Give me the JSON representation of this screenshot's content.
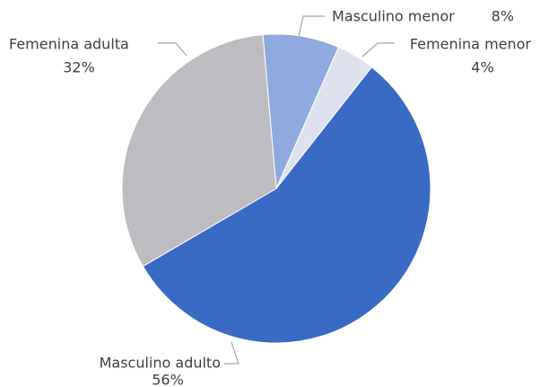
{
  "chart_data": {
    "type": "pie",
    "categories": [
      "Masculino menor",
      "Femenina menor",
      "Masculino adulto",
      "Femenina adulta"
    ],
    "values": [
      8,
      4,
      56,
      32
    ],
    "value_labels": [
      "8%",
      "4%",
      "56%",
      "32%"
    ],
    "colors": [
      "#8eaadf",
      "#dde2ee",
      "#3a6bc4",
      "#bdbcc0"
    ]
  }
}
